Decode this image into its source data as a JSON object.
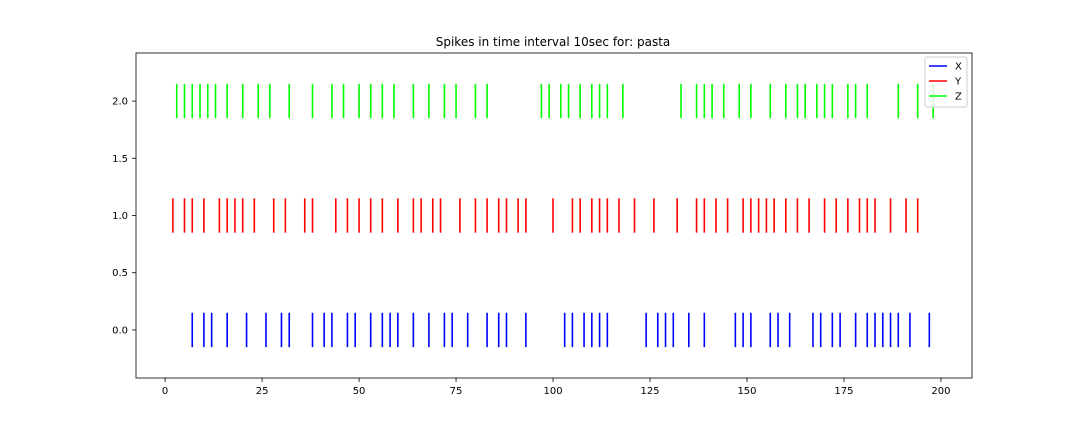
{
  "chart_data": {
    "type": "eventplot",
    "title": "Spikes in time interval 10sec for: pasta",
    "xlabel": "",
    "ylabel": "",
    "xlim": [
      -7.5,
      208
    ],
    "ylim": [
      -0.42,
      2.42
    ],
    "xticks": [
      0,
      25,
      50,
      75,
      100,
      125,
      150,
      175,
      200
    ],
    "xtick_labels": [
      "0",
      "25",
      "50",
      "75",
      "100",
      "125",
      "150",
      "175",
      "200"
    ],
    "yticks": [
      0.0,
      0.5,
      1.0,
      1.5,
      2.0
    ],
    "ytick_labels": [
      "0.0",
      "0.5",
      "1.0",
      "1.5",
      "2.0"
    ],
    "line_length": 0.3,
    "grid": false,
    "legend_position": "top-right",
    "series": [
      {
        "name": "X",
        "color": "#0000ff",
        "offset": 0,
        "events": [
          7,
          10,
          12,
          16,
          21,
          26,
          30,
          32,
          38,
          41,
          43,
          47,
          49,
          53,
          56,
          58,
          60,
          64,
          68,
          72,
          74,
          78,
          83,
          86,
          88,
          93,
          103,
          105,
          108,
          110,
          112,
          114,
          124,
          127,
          129,
          131,
          135,
          139,
          147,
          149,
          151,
          156,
          158,
          161,
          167,
          169,
          172,
          174,
          178,
          181,
          183,
          185,
          187,
          189,
          192,
          197
        ]
      },
      {
        "name": "Y",
        "color": "#ff0000",
        "offset": 1,
        "events": [
          2,
          5,
          7,
          10,
          14,
          16,
          18,
          20,
          23,
          28,
          31,
          36,
          38,
          44,
          47,
          50,
          53,
          56,
          60,
          64,
          66,
          69,
          71,
          76,
          80,
          83,
          86,
          88,
          91,
          93,
          100,
          105,
          107,
          110,
          112,
          114,
          117,
          121,
          126,
          132,
          137,
          139,
          142,
          145,
          149,
          151,
          153,
          155,
          157,
          160,
          163,
          166,
          170,
          173,
          176,
          179,
          181,
          183,
          187,
          191,
          194
        ]
      },
      {
        "name": "Z",
        "color": "#00ff00",
        "offset": 2,
        "events": [
          3,
          5,
          7,
          9,
          11,
          13,
          16,
          20,
          24,
          27,
          32,
          38,
          43,
          46,
          50,
          53,
          56,
          59,
          64,
          68,
          72,
          75,
          80,
          83,
          97,
          99,
          102,
          104,
          107,
          110,
          112,
          114,
          118,
          133,
          137,
          139,
          141,
          144,
          148,
          151,
          156,
          160,
          163,
          165,
          168,
          170,
          172,
          176,
          178,
          181,
          189,
          194,
          198
        ]
      }
    ]
  }
}
